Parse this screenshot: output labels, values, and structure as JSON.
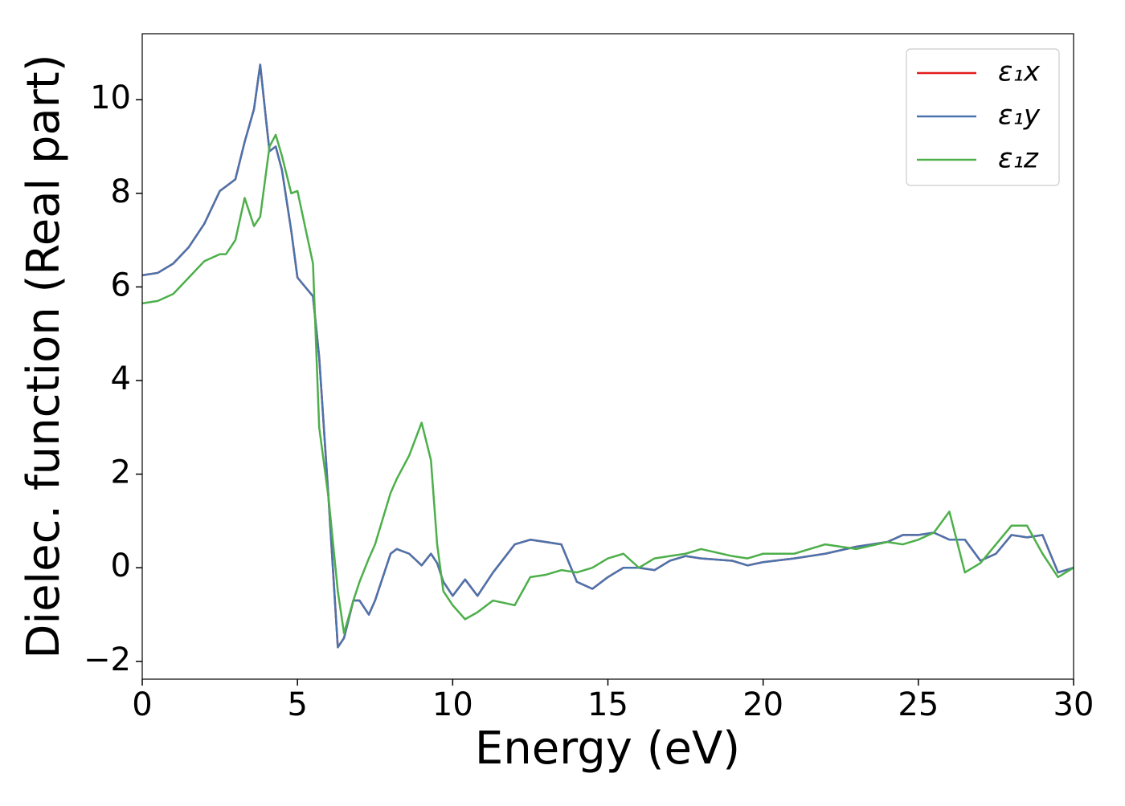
{
  "chart_data": {
    "type": "line",
    "xlabel": "Energy (eV)",
    "ylabel": "Dielec. function (Real part)",
    "x": [
      0,
      0.5,
      1,
      1.5,
      2,
      2.5,
      2.7,
      3,
      3.3,
      3.6,
      3.8,
      4,
      4.1,
      4.3,
      4.5,
      4.8,
      5,
      5.5,
      5.7,
      6,
      6.3,
      6.5,
      6.8,
      7,
      7.3,
      7.5,
      8,
      8.2,
      8.6,
      9,
      9.3,
      9.5,
      9.7,
      10,
      10.4,
      10.8,
      11.3,
      12,
      12.5,
      13,
      13.5,
      14,
      14.5,
      15,
      15.5,
      16,
      16.5,
      17,
      17.5,
      18,
      19,
      19.5,
      20,
      21,
      22,
      23,
      24,
      24.5,
      25,
      25.5,
      26,
      26.5,
      27,
      27.5,
      28,
      28.5,
      29,
      29.5,
      30
    ],
    "series": [
      {
        "name": "ε₁x",
        "color": "#e41a1c",
        "values": [
          6.25,
          6.3,
          6.5,
          6.85,
          7.35,
          8.05,
          8.15,
          8.3,
          9.1,
          9.8,
          10.75,
          9.5,
          8.9,
          9.0,
          8.5,
          7.2,
          6.2,
          5.8,
          4.5,
          1.5,
          -1.7,
          -1.5,
          -0.7,
          -0.7,
          -1.0,
          -0.7,
          0.3,
          0.4,
          0.3,
          0.05,
          0.3,
          0.1,
          -0.3,
          -0.6,
          -0.25,
          -0.6,
          -0.1,
          0.5,
          0.6,
          0.55,
          0.5,
          -0.3,
          -0.45,
          -0.2,
          0.0,
          0.0,
          -0.05,
          0.15,
          0.25,
          0.2,
          0.15,
          0.05,
          0.12,
          0.2,
          0.3,
          0.45,
          0.55,
          0.7,
          0.7,
          0.75,
          0.6,
          0.6,
          0.15,
          0.3,
          0.7,
          0.65,
          0.7,
          -0.1,
          0.0
        ]
      },
      {
        "name": "ε₁y",
        "color": "#4a74ad",
        "values": [
          6.25,
          6.3,
          6.5,
          6.85,
          7.35,
          8.05,
          8.15,
          8.3,
          9.1,
          9.8,
          10.75,
          9.5,
          8.9,
          9.0,
          8.5,
          7.2,
          6.2,
          5.8,
          4.5,
          1.5,
          -1.7,
          -1.5,
          -0.7,
          -0.7,
          -1.0,
          -0.7,
          0.3,
          0.4,
          0.3,
          0.05,
          0.3,
          0.1,
          -0.3,
          -0.6,
          -0.25,
          -0.6,
          -0.1,
          0.5,
          0.6,
          0.55,
          0.5,
          -0.3,
          -0.45,
          -0.2,
          0.0,
          0.0,
          -0.05,
          0.15,
          0.25,
          0.2,
          0.15,
          0.05,
          0.12,
          0.2,
          0.3,
          0.45,
          0.55,
          0.7,
          0.7,
          0.75,
          0.6,
          0.6,
          0.15,
          0.3,
          0.7,
          0.65,
          0.7,
          -0.1,
          0.0
        ]
      },
      {
        "name": "ε₁z",
        "color": "#4daf4a",
        "values": [
          5.65,
          5.7,
          5.85,
          6.2,
          6.55,
          6.7,
          6.7,
          7.0,
          7.9,
          7.3,
          7.5,
          8.5,
          9.0,
          9.25,
          8.8,
          8.0,
          8.05,
          6.5,
          3.0,
          1.5,
          -0.5,
          -1.4,
          -0.7,
          -0.3,
          0.2,
          0.5,
          1.6,
          1.9,
          2.4,
          3.1,
          2.3,
          0.5,
          -0.5,
          -0.8,
          -1.1,
          -0.95,
          -0.7,
          -0.8,
          -0.2,
          -0.15,
          -0.05,
          -0.1,
          0.0,
          0.2,
          0.3,
          0.0,
          0.2,
          0.25,
          0.3,
          0.4,
          0.25,
          0.2,
          0.3,
          0.3,
          0.5,
          0.4,
          0.55,
          0.5,
          0.6,
          0.75,
          1.2,
          -0.1,
          0.1,
          0.5,
          0.9,
          0.9,
          0.3,
          -0.2,
          0.0
        ]
      }
    ],
    "xlim": [
      0,
      30
    ],
    "xticks": [
      0,
      5,
      10,
      15,
      20,
      25,
      30
    ],
    "ylim": [
      -2.38,
      11.41
    ],
    "yticks": [
      {
        "value": -2,
        "label": "−2"
      },
      0,
      2,
      4,
      6,
      8,
      10
    ],
    "legend": "upper right",
    "grid": false
  }
}
